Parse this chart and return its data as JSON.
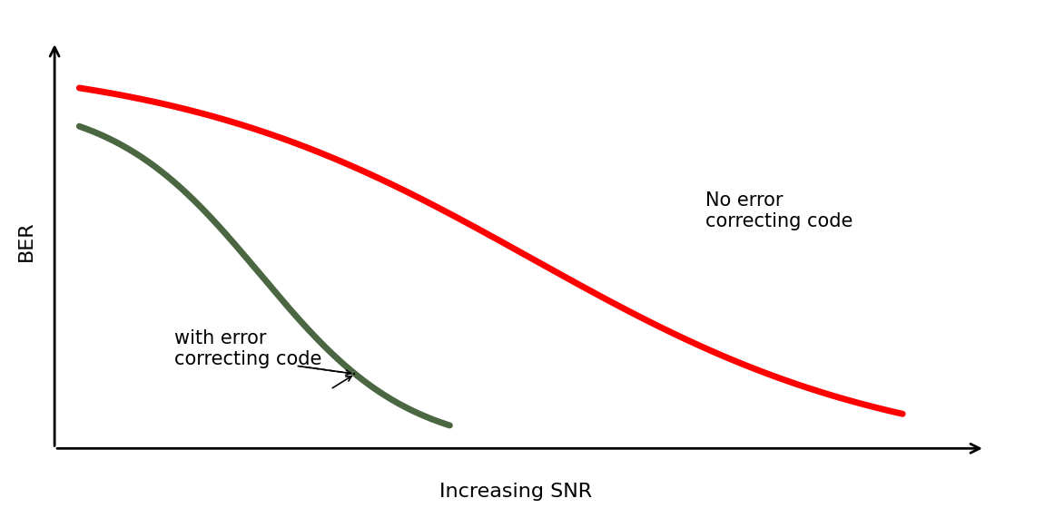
{
  "title": "",
  "xlabel": "Increasing SNR",
  "ylabel": "BER",
  "background_color": "#ffffff",
  "red_color": "#ff0000",
  "green_color": "#4a6741",
  "label_no_ecc": "No error\ncorrecting code",
  "label_ecc": "with error\ncorrecting code",
  "xlabel_fontsize": 16,
  "ylabel_fontsize": 16,
  "annotation_fontsize": 15,
  "line_width": 5,
  "xlim": [
    -0.5,
    11.5
  ],
  "ylim": [
    -0.08,
    1.08
  ]
}
